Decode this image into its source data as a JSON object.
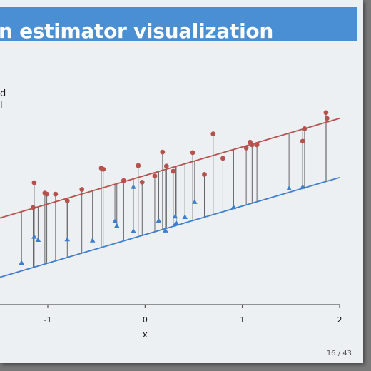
{
  "slide": {
    "title": "n estimator visualization",
    "legend_fragments": [
      "d",
      "l"
    ],
    "page_number": "16 / 43"
  },
  "chart_data": {
    "type": "scatter",
    "title": "",
    "xlabel": "x",
    "ylabel": "",
    "xlim": [
      -1.55,
      2.0
    ],
    "ylim": [
      -1.8,
      2.35
    ],
    "xticks": [
      -1,
      0,
      1,
      2
    ],
    "xtick_labels": [
      "-1",
      "0",
      "1",
      "2"
    ],
    "grid": false,
    "colors": {
      "red": "#b5524d",
      "blue": "#3f7ecc",
      "segment": "#555555"
    },
    "lines": [
      {
        "color": "red",
        "intercept": 0.62,
        "slope": 0.55
      },
      {
        "color": "blue",
        "intercept": -0.52,
        "slope": 0.55
      }
    ],
    "red_points": [
      [
        -1.14,
        0.48
      ],
      [
        -1.15,
        0.0
      ],
      [
        -1.03,
        0.28
      ],
      [
        -1.01,
        0.26
      ],
      [
        -0.92,
        0.26
      ],
      [
        -0.8,
        0.13
      ],
      [
        -0.65,
        0.35
      ],
      [
        -0.45,
        0.76
      ],
      [
        -0.43,
        0.74
      ],
      [
        -0.22,
        0.52
      ],
      [
        -0.07,
        0.81
      ],
      [
        -0.03,
        0.49
      ],
      [
        0.1,
        0.61
      ],
      [
        0.18,
        1.07
      ],
      [
        0.22,
        0.8
      ],
      [
        0.29,
        0.7
      ],
      [
        0.49,
        1.06
      ],
      [
        0.61,
        0.64
      ],
      [
        0.7,
        1.42
      ],
      [
        0.8,
        0.95
      ],
      [
        1.04,
        1.15
      ],
      [
        1.08,
        1.26
      ],
      [
        1.1,
        1.21
      ],
      [
        1.15,
        1.21
      ],
      [
        1.62,
        1.28
      ],
      [
        1.64,
        1.52
      ],
      [
        1.86,
        1.83
      ],
      [
        1.87,
        1.72
      ]
    ],
    "blue_points": [
      [
        -1.62,
        -0.65
      ],
      [
        -1.27,
        -1.06
      ],
      [
        -1.14,
        -0.56
      ],
      [
        -1.1,
        -0.62
      ],
      [
        -0.8,
        -0.61
      ],
      [
        -0.54,
        -0.63
      ],
      [
        -0.31,
        -0.26
      ],
      [
        -0.29,
        -0.35
      ],
      [
        -0.12,
        -0.45
      ],
      [
        -0.12,
        0.4
      ],
      [
        0.14,
        -0.25
      ],
      [
        0.21,
        -0.44
      ],
      [
        0.31,
        -0.17
      ],
      [
        0.32,
        -0.29
      ],
      [
        0.41,
        -0.18
      ],
      [
        0.51,
        0.11
      ],
      [
        0.91,
        0.01
      ],
      [
        1.48,
        0.37
      ],
      [
        1.62,
        0.4
      ]
    ]
  }
}
